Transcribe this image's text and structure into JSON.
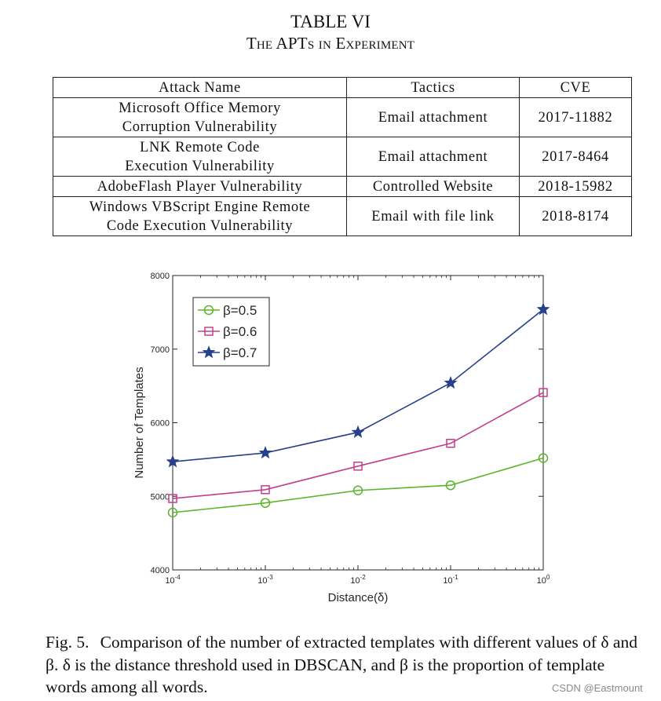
{
  "table": {
    "title": "TABLE VI",
    "subtitle": "The APTs in Experiment",
    "headers": [
      "Attack Name",
      "Tactics",
      "CVE"
    ],
    "rows": [
      {
        "name_line1": "Microsoft Office Memory",
        "name_line2": "Corruption Vulnerability",
        "tactics": "Email attachment",
        "cve": "2017-11882"
      },
      {
        "name_line1": "LNK Remote Code",
        "name_line2": "Execution Vulnerability",
        "tactics": "Email attachment",
        "cve": "2017-8464"
      },
      {
        "name_line1": "AdobeFlash Player Vulnerability",
        "name_line2": "",
        "tactics": "Controlled Website",
        "cve": "2018-15982"
      },
      {
        "name_line1": "Windows VBScript Engine Remote",
        "name_line2": "Code Execution Vulnerability",
        "tactics": "Email with file link",
        "cve": "2018-8174"
      }
    ]
  },
  "chart_data": {
    "type": "line",
    "xscale": "log",
    "x": [
      0.0001,
      0.001,
      0.01,
      0.1,
      1
    ],
    "xticklabels": [
      {
        "base": "10",
        "exp": "-4"
      },
      {
        "base": "10",
        "exp": "-3"
      },
      {
        "base": "10",
        "exp": "-2"
      },
      {
        "base": "10",
        "exp": "-1"
      },
      {
        "base": "10",
        "exp": "0"
      }
    ],
    "xlabel": "Distance(δ)",
    "ylabel": "Number of Templates",
    "ylim": [
      4000,
      8000
    ],
    "yticks": [
      4000,
      5000,
      6000,
      7000,
      8000
    ],
    "legend_position": "top-left",
    "series": [
      {
        "name": "β=0.5",
        "color": "#5bb52a",
        "marker": "circle",
        "values": [
          4780,
          4910,
          5080,
          5150,
          5520
        ]
      },
      {
        "name": "β=0.6",
        "color": "#c33f8b",
        "marker": "square",
        "values": [
          4970,
          5090,
          5410,
          5720,
          6410
        ]
      },
      {
        "name": "β=0.7",
        "color": "#27408b",
        "marker": "star",
        "values": [
          5470,
          5590,
          5870,
          6540,
          7540
        ]
      }
    ]
  },
  "caption": {
    "label": "Fig. 5.",
    "text": "Comparison of the number of extracted templates with different values of δ and β. δ is the distance threshold used in DBSCAN, and β is the proportion of template words among all words."
  },
  "watermark": "CSDN @Eastmount"
}
